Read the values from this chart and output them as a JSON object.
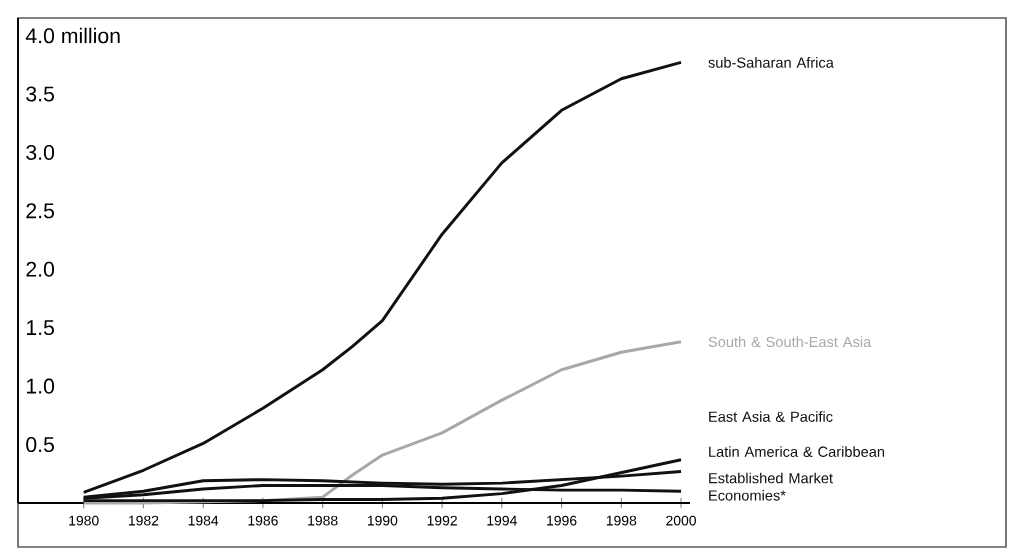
{
  "chart_data": {
    "type": "line",
    "x": [
      1980,
      1982,
      1984,
      1986,
      1988,
      1989,
      1990,
      1992,
      1994,
      1996,
      1998,
      2000
    ],
    "series": [
      {
        "name": "sub-Saharan Africa",
        "color": "#111111",
        "values": [
          0.09,
          0.28,
          0.51,
          0.81,
          1.14,
          1.34,
          1.56,
          2.3,
          2.91,
          3.36,
          3.63,
          3.77
        ]
      },
      {
        "name": "South & South-East Asia",
        "color": "#a8a8a8",
        "values": [
          0.0,
          0.0,
          0.01,
          0.02,
          0.05,
          0.24,
          0.41,
          0.6,
          0.88,
          1.14,
          1.29,
          1.38
        ]
      },
      {
        "name": "East Asia & Pacific",
        "color": "#111111",
        "values": [
          0.02,
          0.02,
          0.02,
          0.02,
          0.03,
          0.03,
          0.03,
          0.04,
          0.08,
          0.15,
          0.26,
          0.37
        ]
      },
      {
        "name": "Latin America & Caribbean",
        "color": "#111111",
        "values": [
          0.05,
          0.1,
          0.19,
          0.2,
          0.19,
          0.18,
          0.17,
          0.16,
          0.17,
          0.2,
          0.23,
          0.27
        ]
      },
      {
        "name": "Established Market Economies*",
        "color": "#111111",
        "values": [
          0.04,
          0.07,
          0.12,
          0.15,
          0.15,
          0.15,
          0.15,
          0.13,
          0.12,
          0.11,
          0.11,
          0.1
        ]
      }
    ],
    "xlim": [
      1977.8,
      2000.3
    ],
    "ylim": [
      0,
      4.15
    ],
    "xticks": [
      1980,
      1982,
      1984,
      1986,
      1988,
      1990,
      1992,
      1994,
      1996,
      1998,
      2000
    ],
    "yticks": [
      0.5,
      {
        "value": 1,
        "label": "1.0"
      },
      1.5,
      {
        "value": 2,
        "label": "2.0"
      },
      2.5,
      {
        "value": 3,
        "label": "3.0"
      },
      3.5,
      {
        "value": 4,
        "label": "4.0 million"
      }
    ],
    "grid": false,
    "legend": false,
    "marker": "none",
    "line_style": "solid"
  }
}
